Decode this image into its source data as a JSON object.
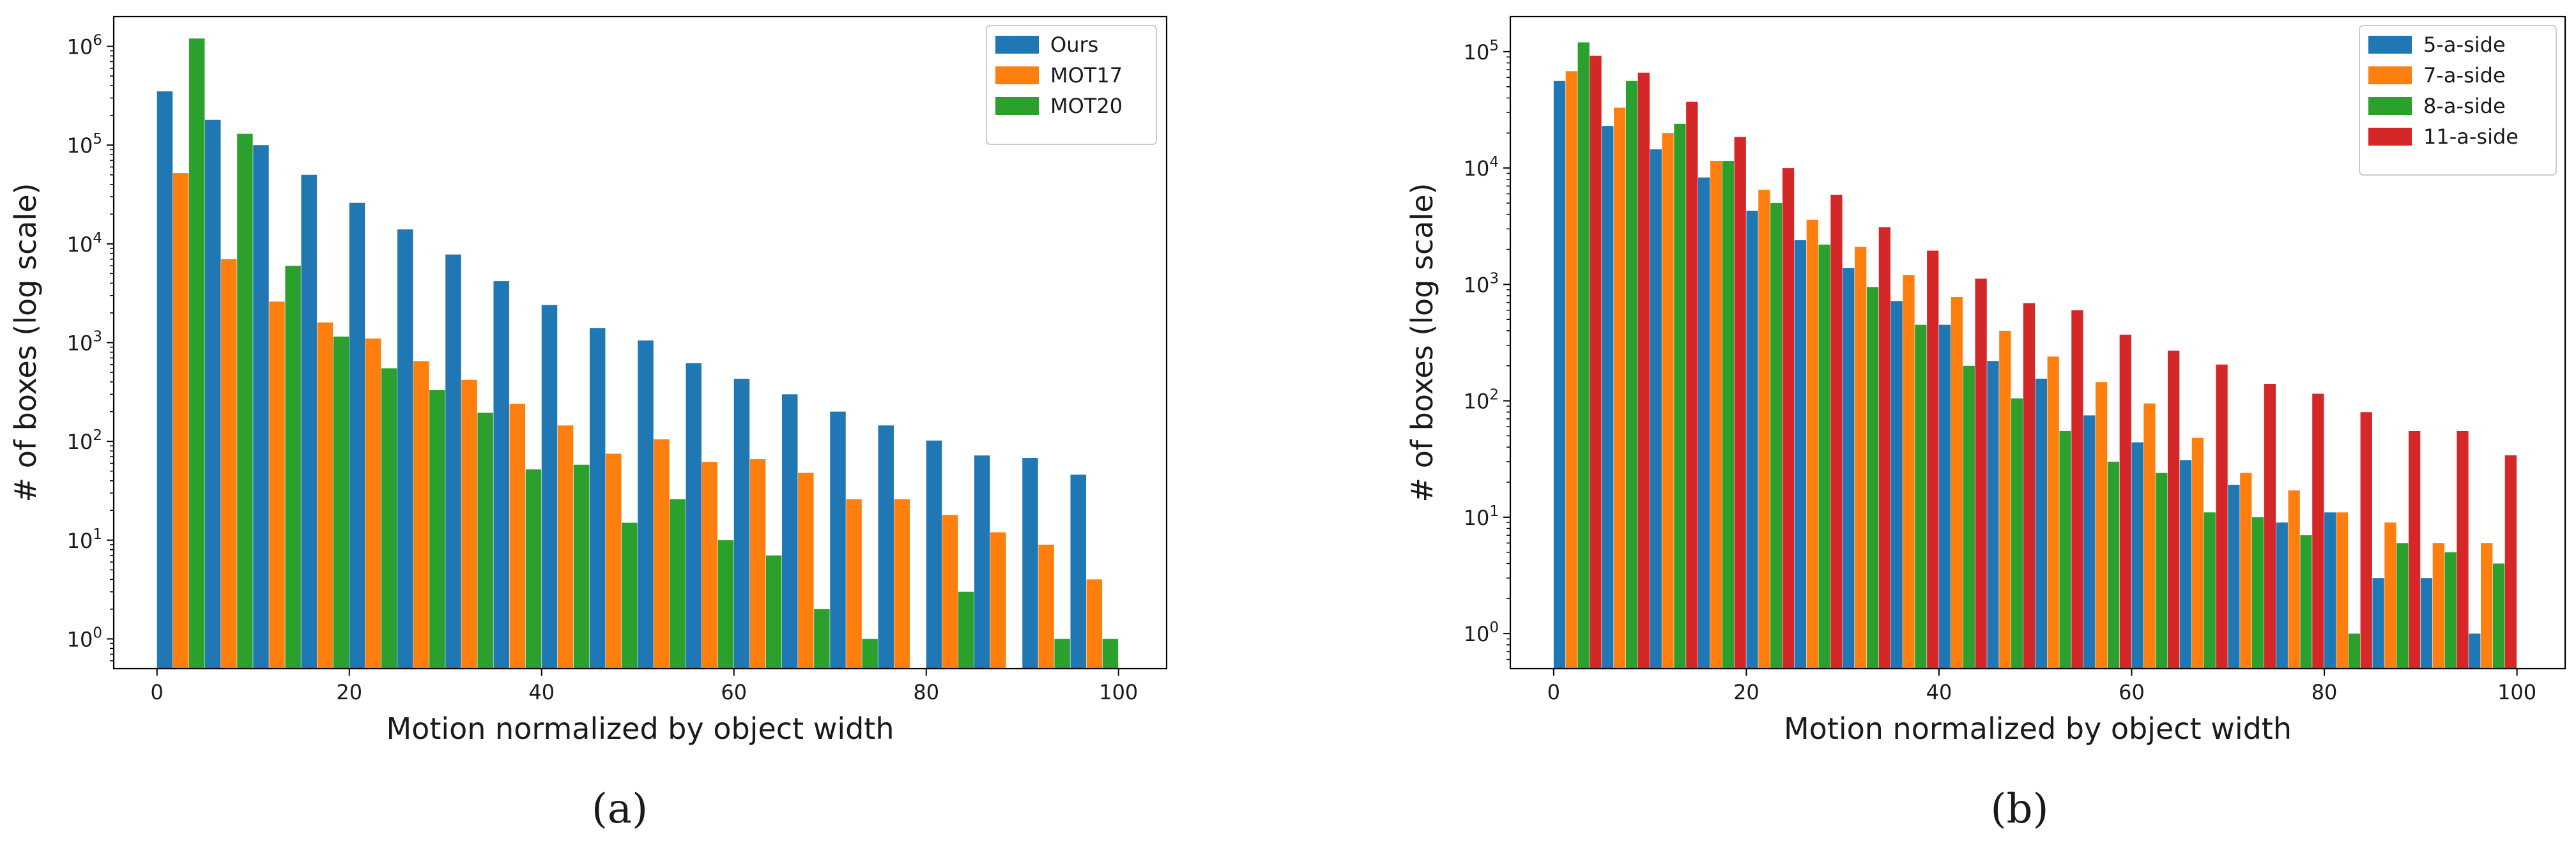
{
  "chart_data": [
    {
      "type": "bar",
      "panel_label": "(a)",
      "xlabel": "Motion normalized by object width",
      "ylabel": "# of boxes (log scale)",
      "yscale": "log",
      "ylim": [
        0.5,
        2000000
      ],
      "xlim": [
        -4.5,
        105
      ],
      "bin_width": 5,
      "xticks": [
        0,
        20,
        40,
        60,
        80,
        100
      ],
      "xtick_labels": [
        "0",
        "20",
        "40",
        "60",
        "80",
        "100"
      ],
      "yticks": [
        1,
        10,
        100,
        1000,
        10000,
        100000,
        1000000
      ],
      "ytick_labels": [
        {
          "base": "10",
          "exp": "0"
        },
        {
          "base": "10",
          "exp": "1"
        },
        {
          "base": "10",
          "exp": "2"
        },
        {
          "base": "10",
          "exp": "3"
        },
        {
          "base": "10",
          "exp": "4"
        },
        {
          "base": "10",
          "exp": "5"
        },
        {
          "base": "10",
          "exp": "6"
        }
      ],
      "legend_position": "top-right",
      "series": [
        {
          "name": "Ours",
          "color": "#1f77b4",
          "values": [
            350000,
            180000,
            100000,
            50000,
            26000,
            14000,
            7800,
            4200,
            2400,
            1400,
            1050,
            620,
            430,
            300,
            200,
            145,
            102,
            72,
            68,
            46
          ]
        },
        {
          "name": "MOT17",
          "color": "#ff7f0e",
          "values": [
            52000,
            7000,
            2600,
            1600,
            1100,
            650,
            420,
            240,
            145,
            75,
            105,
            62,
            66,
            48,
            26,
            26,
            18,
            12,
            9,
            4
          ]
        },
        {
          "name": "MOT20",
          "color": "#2ca02c",
          "values": [
            1200000,
            130000,
            6000,
            1150,
            550,
            330,
            195,
            52,
            58,
            15,
            26,
            10,
            7,
            2,
            1,
            0,
            3,
            0,
            1,
            1
          ]
        }
      ]
    },
    {
      "type": "bar",
      "panel_label": "(b)",
      "xlabel": "Motion normalized by object width",
      "ylabel": "# of boxes (log scale)",
      "yscale": "log",
      "ylim": [
        0.5,
        200000
      ],
      "xlim": [
        -4.5,
        105
      ],
      "bin_width": 5,
      "xticks": [
        0,
        20,
        40,
        60,
        80,
        100
      ],
      "xtick_labels": [
        "0",
        "20",
        "40",
        "60",
        "80",
        "100"
      ],
      "yticks": [
        1,
        10,
        100,
        1000,
        10000,
        100000
      ],
      "ytick_labels": [
        {
          "base": "10",
          "exp": "0"
        },
        {
          "base": "10",
          "exp": "1"
        },
        {
          "base": "10",
          "exp": "2"
        },
        {
          "base": "10",
          "exp": "3"
        },
        {
          "base": "10",
          "exp": "4"
        },
        {
          "base": "10",
          "exp": "5"
        }
      ],
      "legend_position": "top-right",
      "series": [
        {
          "name": "5-a-side",
          "color": "#1f77b4",
          "values": [
            56000,
            23000,
            14500,
            8300,
            4300,
            2400,
            1380,
            720,
            450,
            220,
            155,
            75,
            44,
            31,
            19,
            9,
            11,
            3,
            3,
            1
          ]
        },
        {
          "name": "7-a-side",
          "color": "#ff7f0e",
          "values": [
            68000,
            33000,
            20000,
            11500,
            6500,
            3600,
            2100,
            1200,
            780,
            400,
            240,
            145,
            95,
            48,
            24,
            17,
            11,
            9,
            6,
            6
          ]
        },
        {
          "name": "8-a-side",
          "color": "#2ca02c",
          "values": [
            120000,
            56000,
            24000,
            11500,
            5000,
            2200,
            950,
            450,
            200,
            105,
            55,
            30,
            24,
            11,
            10,
            7,
            1,
            6,
            5,
            4
          ]
        },
        {
          "name": "11-a-side",
          "color": "#d62728",
          "values": [
            92000,
            66000,
            37000,
            18500,
            10000,
            5900,
            3100,
            1950,
            1120,
            690,
            600,
            370,
            270,
            205,
            140,
            115,
            80,
            55,
            55,
            34
          ]
        }
      ]
    }
  ]
}
